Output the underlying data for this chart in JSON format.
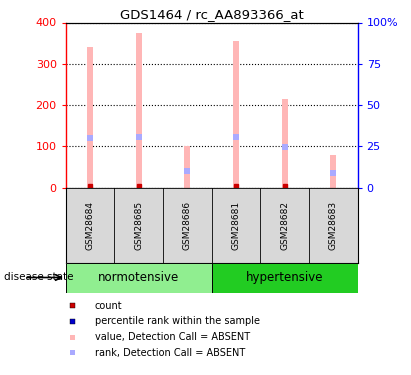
{
  "title": "GDS1464 / rc_AA893366_at",
  "samples": [
    "GSM28684",
    "GSM28685",
    "GSM28686",
    "GSM28681",
    "GSM28682",
    "GSM28683"
  ],
  "group_labels": [
    "normotensive",
    "hypertensive"
  ],
  "group_color_light": "#90EE90",
  "group_color_dark": "#22CC22",
  "bar_color_absent": "#FFB6B6",
  "rank_color_absent": "#AAAAFF",
  "count_color": "#CC0000",
  "ylim_left": [
    0,
    400
  ],
  "ylim_right": [
    0,
    100
  ],
  "yticks_left": [
    0,
    100,
    200,
    300,
    400
  ],
  "yticks_right": [
    0,
    25,
    50,
    75,
    100
  ],
  "yticklabels_right": [
    "0",
    "25",
    "50",
    "75",
    "100%"
  ],
  "values_absent": [
    340,
    375,
    100,
    355,
    215,
    80
  ],
  "ranks_absent": [
    120,
    122,
    40,
    122,
    98,
    35
  ],
  "has_count": [
    true,
    true,
    false,
    true,
    true,
    false
  ],
  "bg_color": "#D8D8D8",
  "legend_items": [
    {
      "color": "#CC0000",
      "label": "count"
    },
    {
      "color": "#0000CC",
      "label": "percentile rank within the sample"
    },
    {
      "color": "#FFB6B6",
      "label": "value, Detection Call = ABSENT"
    },
    {
      "color": "#AAAAFF",
      "label": "rank, Detection Call = ABSENT"
    }
  ],
  "disease_state_label": "disease state",
  "bar_width": 0.12
}
